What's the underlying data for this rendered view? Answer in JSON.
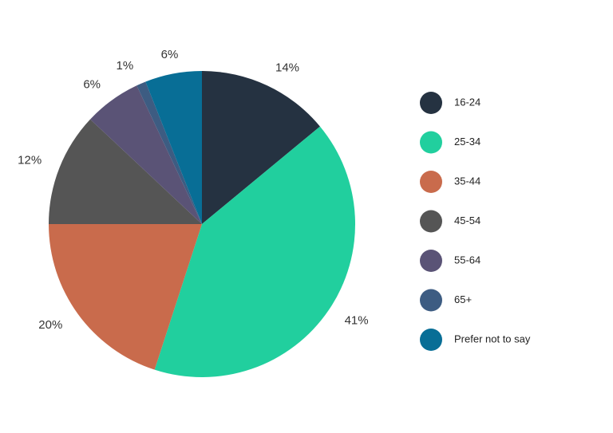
{
  "chart_data": {
    "type": "pie",
    "title": "",
    "start_angle": "12 o'clock",
    "direction": "clockwise",
    "legend_position": "right",
    "slices": [
      {
        "label": "16-24",
        "value": 14,
        "display": "14%",
        "color": "#253241"
      },
      {
        "label": "25-34",
        "value": 41,
        "display": "41%",
        "color": "#21cf9e"
      },
      {
        "label": "35-44",
        "value": 20,
        "display": "20%",
        "color": "#c96b4c"
      },
      {
        "label": "45-54",
        "value": 12,
        "display": "12%",
        "color": "#555555"
      },
      {
        "label": "55-64",
        "value": 6,
        "display": "6%",
        "color": "#5a5376"
      },
      {
        "label": "65+",
        "value": 1,
        "display": "1%",
        "color": "#3d5c82"
      },
      {
        "label": "Prefer not to say",
        "value": 6,
        "display": "6%",
        "color": "#086e96"
      }
    ]
  }
}
